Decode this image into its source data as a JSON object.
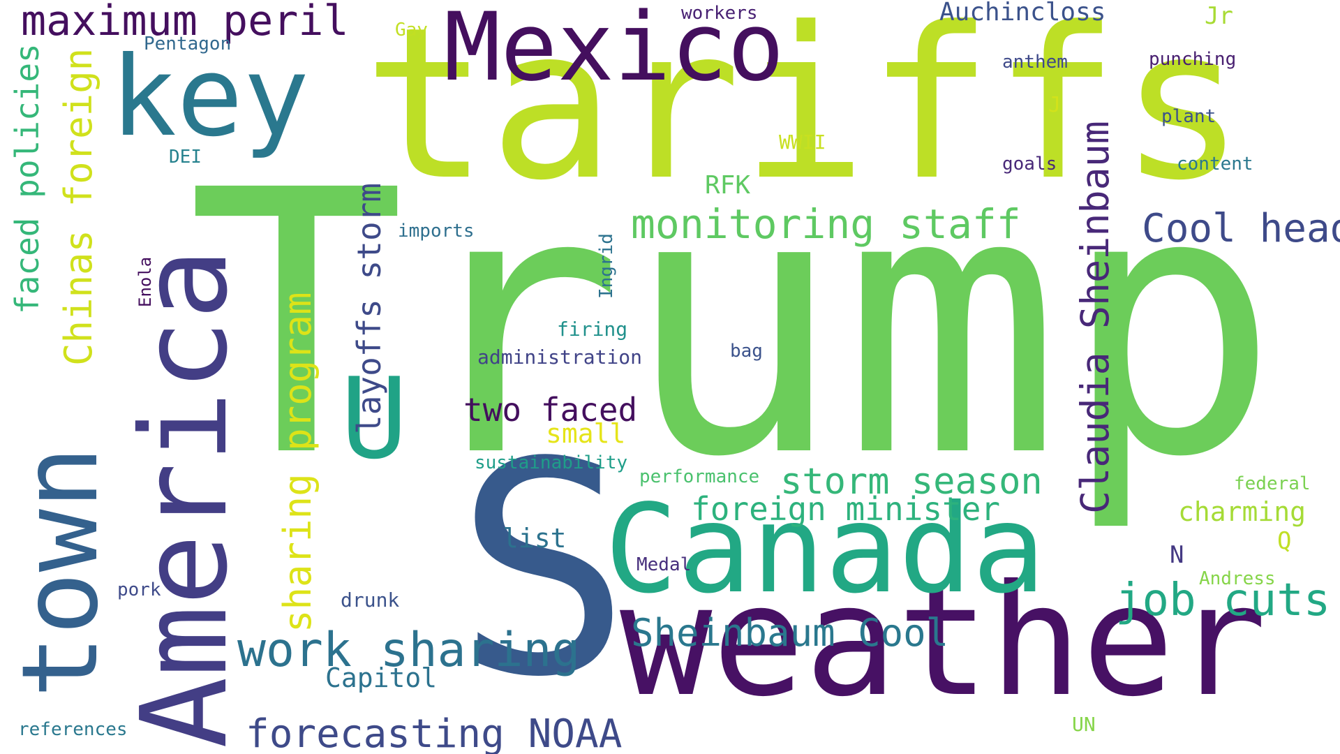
{
  "words": [
    {
      "text": "Trump",
      "color": "#6ccd5a"
    },
    {
      "text": "tariffs",
      "color": "#bddf26"
    },
    {
      "text": "S",
      "color": "#375a8c"
    },
    {
      "text": "weather",
      "color": "#471164"
    },
    {
      "text": "Canada",
      "color": "#22a884"
    },
    {
      "text": "Mexico",
      "color": "#440f5e"
    },
    {
      "text": "America",
      "color": "#433e85"
    },
    {
      "text": "town",
      "color": "#34618d"
    },
    {
      "text": "key",
      "color": "#2a788e"
    },
    {
      "text": "U",
      "color": "#20a386"
    },
    {
      "text": "maximum peril",
      "color": "#440f5e"
    },
    {
      "text": "work sharing",
      "color": "#2c728e"
    },
    {
      "text": "forecasting NOAA",
      "color": "#3e4a89"
    },
    {
      "text": "monitoring staff",
      "color": "#5ec962"
    },
    {
      "text": "Cool head",
      "color": "#3e4a89"
    },
    {
      "text": "storm season",
      "color": "#35b779"
    },
    {
      "text": "foreign minister",
      "color": "#2db27d"
    },
    {
      "text": "job cuts",
      "color": "#22a884"
    },
    {
      "text": "Sheinbaum Cool",
      "color": "#2a788e"
    },
    {
      "text": "two faced",
      "color": "#440f5e"
    },
    {
      "text": "Claudia Sheinbaum",
      "color": "#482878"
    },
    {
      "text": "layoffs storm",
      "color": "#3e4a89"
    },
    {
      "text": "sharing program",
      "color": "#dde318"
    },
    {
      "text": "Chinas foreign",
      "color": "#d0e11c"
    },
    {
      "text": "faced policies",
      "color": "#35b779"
    },
    {
      "text": "Auchincloss",
      "color": "#3b528b"
    },
    {
      "text": "RFK",
      "color": "#5ec962"
    },
    {
      "text": "charming",
      "color": "#a5db36"
    },
    {
      "text": "small",
      "color": "#e5e419"
    },
    {
      "text": "list",
      "color": "#2c728e"
    },
    {
      "text": "Capitol",
      "color": "#2c728e"
    },
    {
      "text": "Jr",
      "color": "#a8db34"
    },
    {
      "text": "workers",
      "color": "#482173"
    },
    {
      "text": "Pentagon",
      "color": "#31688e"
    },
    {
      "text": "Gay",
      "color": "#c2df23"
    },
    {
      "text": "anthem",
      "color": "#3e4989"
    },
    {
      "text": "punching",
      "color": "#481f70"
    },
    {
      "text": "J",
      "color": "#d2e21b"
    },
    {
      "text": "plant",
      "color": "#3b528b"
    },
    {
      "text": "WWII",
      "color": "#c8e020"
    },
    {
      "text": "goals",
      "color": "#482878"
    },
    {
      "text": "content",
      "color": "#2a788e"
    },
    {
      "text": "DEI",
      "color": "#26828e"
    },
    {
      "text": "imports",
      "color": "#2e6f8e"
    },
    {
      "text": "Ingrid",
      "color": "#2c728e"
    },
    {
      "text": "Enola",
      "color": "#440f5e"
    },
    {
      "text": "firing",
      "color": "#21918c"
    },
    {
      "text": "administration",
      "color": "#404387"
    },
    {
      "text": "bag",
      "color": "#3b528b"
    },
    {
      "text": "sustainability",
      "color": "#1f9e89"
    },
    {
      "text": "performance",
      "color": "#4ac16d"
    },
    {
      "text": "federal",
      "color": "#7ad151"
    },
    {
      "text": "Q",
      "color": "#c0df25"
    },
    {
      "text": "N",
      "color": "#443983"
    },
    {
      "text": "Medal",
      "color": "#472f7d"
    },
    {
      "text": "Andress",
      "color": "#86d549"
    },
    {
      "text": "pork",
      "color": "#3e4a89"
    },
    {
      "text": "drunk",
      "color": "#3b528b"
    },
    {
      "text": "references",
      "color": "#2a788e"
    },
    {
      "text": "UN",
      "color": "#86d549"
    }
  ]
}
